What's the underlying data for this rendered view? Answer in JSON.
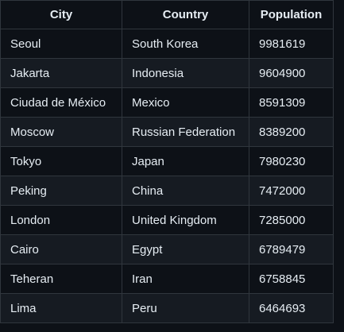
{
  "table": {
    "headers": [
      "City",
      "Country",
      "Population"
    ],
    "rows": [
      [
        "Seoul",
        "South Korea",
        "9981619"
      ],
      [
        "Jakarta",
        "Indonesia",
        "9604900"
      ],
      [
        "Ciudad de México",
        "Mexico",
        "8591309"
      ],
      [
        "Moscow",
        "Russian Federation",
        "8389200"
      ],
      [
        "Tokyo",
        "Japan",
        "7980230"
      ],
      [
        "Peking",
        "China",
        "7472000"
      ],
      [
        "London",
        "United Kingdom",
        "7285000"
      ],
      [
        "Cairo",
        "Egypt",
        "6789479"
      ],
      [
        "Teheran",
        "Iran",
        "6758845"
      ],
      [
        "Lima",
        "Peru",
        "6464693"
      ]
    ]
  },
  "colors": {
    "background": "#0d1117",
    "row_alt": "#161b22",
    "border": "#30363d",
    "text": "#e6edf3"
  }
}
